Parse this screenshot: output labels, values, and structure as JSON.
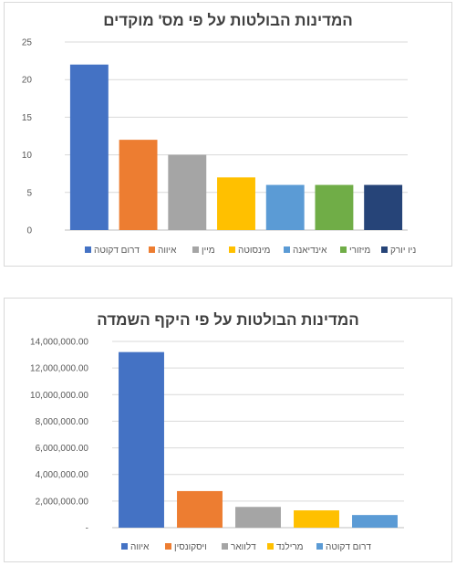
{
  "chart_data": [
    {
      "type": "bar",
      "title": "המדינות הבולטות על פי מס' מוקדים",
      "categories": [
        "דרום דקוטה",
        "איווה",
        "מיין",
        "מינסוטה",
        "אינדיאנה",
        "מיזורי",
        "ניו יורק"
      ],
      "values": [
        22,
        12,
        10,
        7,
        6,
        6,
        6
      ],
      "colors": [
        "#4472C4",
        "#ED7D31",
        "#A5A5A5",
        "#FFC000",
        "#5B9BD5",
        "#70AD47",
        "#264478"
      ],
      "ylim": [
        0,
        25
      ],
      "yticks": [
        0,
        5,
        10,
        15,
        20,
        25
      ],
      "ytick_labels": [
        "0",
        "5",
        "10",
        "15",
        "20",
        "25"
      ],
      "grid": true,
      "legend": "bottom"
    },
    {
      "type": "bar",
      "title": "המדינות הבולטות על פי היקף השמדה",
      "categories": [
        "איווה",
        "ויסקונסין",
        "דלוואר",
        "מרילנד",
        "דרום דקוטה"
      ],
      "values": [
        13200000,
        2750000,
        1560000,
        1300000,
        950000
      ],
      "colors": [
        "#4472C4",
        "#ED7D31",
        "#A5A5A5",
        "#FFC000",
        "#5B9BD5"
      ],
      "ylim": [
        0,
        14000000
      ],
      "yticks": [
        0,
        2000000,
        4000000,
        6000000,
        8000000,
        10000000,
        12000000,
        14000000
      ],
      "ytick_labels": [
        "-",
        "2,000,000.00",
        "4,000,000.00",
        "6,000,000.00",
        "8,000,000.00",
        "10,000,000.00",
        "12,000,000.00",
        "14,000,000.00"
      ],
      "grid": true,
      "legend": "bottom"
    }
  ]
}
